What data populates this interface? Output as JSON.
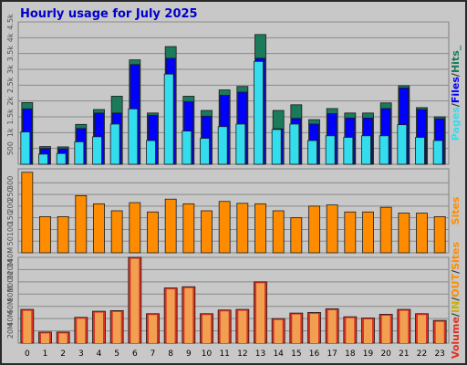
{
  "chart_data": {
    "type": "bar",
    "title": "Hourly usage for July 2025",
    "categories": [
      "0",
      "1",
      "2",
      "3",
      "4",
      "5",
      "6",
      "7",
      "8",
      "9",
      "10",
      "11",
      "12",
      "13",
      "14",
      "15",
      "16",
      "17",
      "18",
      "19",
      "20",
      "21",
      "22",
      "23"
    ],
    "colors": {
      "hits": "#1b7a5a",
      "files": "#0000ff",
      "pages": "#33ddee",
      "sites": "#ff8c00",
      "volume": "#e03020",
      "volume_fill": "#f0a050",
      "background": "#c8c8c8",
      "title": "#0000cc"
    },
    "panels": {
      "usage": {
        "ylim": [
          0,
          4500
        ],
        "yticks": [
          "500",
          "1k",
          "1.5k",
          "2k",
          "2.5k",
          "3k",
          "3.5k",
          "4k",
          "4.5k"
        ],
        "ytick_values": [
          500,
          1000,
          1500,
          2000,
          2500,
          3000,
          3500,
          4000,
          4500
        ],
        "label_parts": [
          "Pages",
          "/",
          "Files",
          "/",
          "Hits_"
        ],
        "series": [
          {
            "name": "Hits",
            "values": [
              1950,
              560,
              550,
              1260,
              1730,
              2150,
              3300,
              1620,
              3720,
              2150,
              1700,
              2350,
              2460,
              4100,
              1700,
              1880,
              1410,
              1760,
              1620,
              1620,
              1940,
              2480,
              1790,
              1500
            ]
          },
          {
            "name": "Files",
            "values": [
              1750,
              500,
              490,
              1130,
              1620,
              1620,
              3150,
              1550,
              3350,
              1980,
              1520,
              2180,
              2280,
              3350,
              1120,
              1450,
              1270,
              1600,
              1460,
              1460,
              1760,
              2410,
              1730,
              1440
            ]
          },
          {
            "name": "Pages",
            "values": [
              1020,
              320,
              340,
              710,
              870,
              1270,
              1750,
              750,
              2850,
              1050,
              820,
              1190,
              1270,
              3250,
              1100,
              1270,
              750,
              900,
              850,
              900,
              900,
              1250,
              850,
              750
            ]
          }
        ]
      },
      "sites": {
        "ylim": [
          0,
          360
        ],
        "yticks": [
          "50",
          "100",
          "150",
          "200",
          "250",
          "300"
        ],
        "ytick_values": [
          50,
          100,
          150,
          200,
          250,
          300
        ],
        "label": "Sites",
        "series": [
          {
            "name": "Sites",
            "values": [
              345,
              155,
              155,
              245,
              210,
              180,
              215,
              175,
              230,
              210,
              180,
              220,
              212,
              210,
              180,
              150,
              200,
              205,
              175,
              175,
              195,
              170,
              170,
              155
            ]
          }
        ]
      },
      "volume": {
        "ylim": [
          0,
          140
        ],
        "yticks": [
          "20M",
          "40M",
          "60M",
          "80M",
          "100M",
          "120M",
          "140M"
        ],
        "ytick_values": [
          20,
          40,
          60,
          80,
          100,
          120,
          140
        ],
        "label_parts": [
          "Volume",
          "/",
          "IN",
          "/",
          "OUT",
          "/",
          "Sites"
        ],
        "series": [
          {
            "name": "Volume",
            "values": [
              55,
              18,
              18,
              42,
              52,
              53,
              140,
              48,
              90,
              92,
              48,
              54,
              55,
              100,
              40,
              49,
              50,
              56,
              43,
              41,
              47,
              55,
              48,
              37
            ]
          }
        ]
      }
    }
  }
}
